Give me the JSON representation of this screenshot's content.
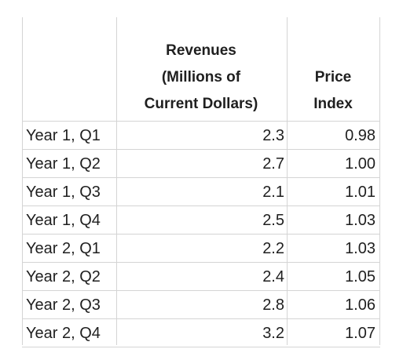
{
  "table": {
    "headers": {
      "revenues_line1": "Revenues",
      "revenues_line2": "(Millions of",
      "revenues_line3": "Current Dollars)",
      "price_line1": "Price",
      "price_line2": "Index"
    },
    "rows": [
      {
        "period": "Year 1, Q1",
        "revenue": "2.3",
        "price_index": "0.98"
      },
      {
        "period": "Year 1, Q2",
        "revenue": "2.7",
        "price_index": "1.00"
      },
      {
        "period": "Year 1, Q3",
        "revenue": "2.1",
        "price_index": "1.01"
      },
      {
        "period": "Year 1, Q4",
        "revenue": "2.5",
        "price_index": "1.03"
      },
      {
        "period": "Year 2, Q1",
        "revenue": "2.2",
        "price_index": "1.03"
      },
      {
        "period": "Year 2, Q2",
        "revenue": "2.4",
        "price_index": "1.05"
      },
      {
        "period": "Year 2, Q3",
        "revenue": "2.8",
        "price_index": "1.06"
      },
      {
        "period": "Year 2, Q4",
        "revenue": "3.2",
        "price_index": "1.07"
      }
    ]
  }
}
